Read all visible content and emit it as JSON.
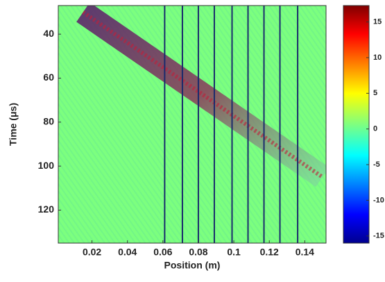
{
  "chart_data": {
    "type": "heatmap",
    "xlabel": "Position (m)",
    "ylabel": "Time (μs)",
    "xlim": [
      0.001,
      0.152
    ],
    "xticks": [
      0.02,
      0.04,
      0.06,
      0.08,
      0.1,
      0.12,
      0.14
    ],
    "ylim": [
      27,
      135
    ],
    "yticks": [
      40,
      60,
      80,
      100,
      120
    ],
    "y_reversed": true,
    "clim": [
      -16,
      17.3
    ],
    "cticks": [
      15,
      10,
      5,
      0,
      -5,
      -10,
      -15
    ],
    "sensor_lines": {
      "color": "#1a2a6c",
      "x": [
        0.061,
        0.071,
        0.08,
        0.089,
        0.099,
        0.108,
        0.117,
        0.126,
        0.136
      ]
    },
    "wavefront": {
      "x": [
        0.015,
        0.15
      ],
      "y": [
        30,
        105
      ]
    }
  }
}
